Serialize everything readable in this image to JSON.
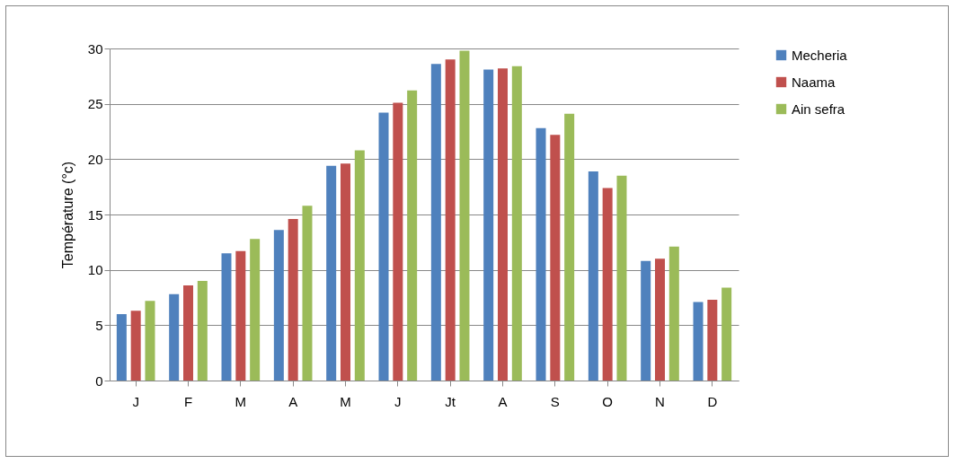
{
  "chart_data": {
    "type": "bar",
    "ylabel": "Température (°c)",
    "categories": [
      "J",
      "F",
      "M",
      "A",
      "M",
      "J",
      "Jt",
      "A",
      "S",
      "O",
      "N",
      "D"
    ],
    "series": [
      {
        "name": "Mecheria",
        "color": "#4f81bd",
        "values": [
          6.0,
          7.8,
          11.5,
          13.6,
          19.4,
          24.2,
          28.6,
          28.1,
          22.8,
          18.9,
          10.8,
          7.1
        ]
      },
      {
        "name": "Naama",
        "color": "#c0504d",
        "values": [
          6.3,
          8.6,
          11.7,
          14.6,
          19.6,
          25.1,
          29.0,
          28.2,
          22.2,
          17.4,
          11.0,
          7.3
        ]
      },
      {
        "name": "Ain sefra",
        "color": "#9bbb59",
        "values": [
          7.2,
          9.0,
          12.8,
          15.8,
          20.8,
          26.2,
          29.8,
          28.4,
          24.1,
          18.5,
          12.1,
          8.4
        ]
      }
    ],
    "ylim": [
      0,
      30
    ],
    "yticks": [
      0,
      5,
      10,
      15,
      20,
      25,
      30
    ],
    "grid": "y",
    "legend": "right"
  }
}
